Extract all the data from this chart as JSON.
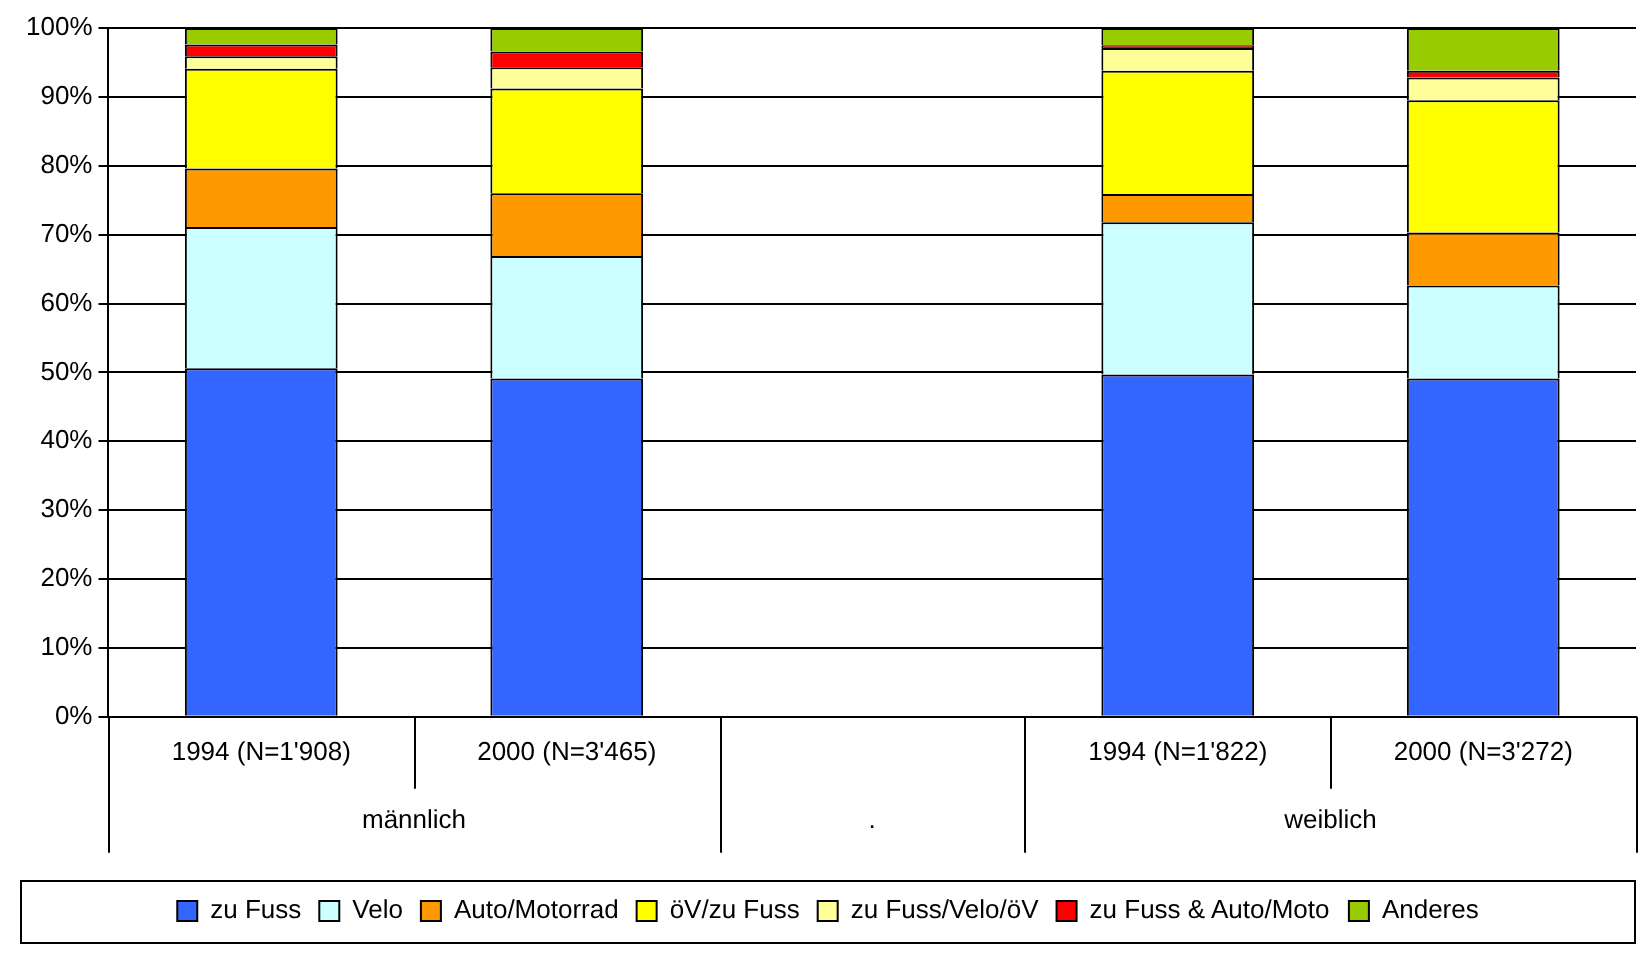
{
  "chart_data": {
    "type": "bar",
    "stacked": true,
    "categories": [
      "1994 (N=1'908)",
      "2000 (N=3'465)",
      null,
      "1994 (N=1'822)",
      "2000 (N=3'272)"
    ],
    "annotations": [
      "männlich",
      ".",
      "weiblich"
    ],
    "series": [
      {
        "name": "zu Fuss",
        "color": "#3366ff",
        "values": [
          50.6,
          49.1,
          null,
          49.7,
          49.1
        ]
      },
      {
        "name": "Velo",
        "color": "#ccffff",
        "values": [
          20.5,
          17.8,
          null,
          22.1,
          13.5
        ]
      },
      {
        "name": "Auto/Motorrad",
        "color": "#ff9900",
        "values": [
          8.5,
          9.1,
          null,
          4.1,
          7.7
        ]
      },
      {
        "name": "öV/zu Fuss",
        "color": "#ffff00",
        "values": [
          14.5,
          15.2,
          null,
          17.9,
          19.2
        ]
      },
      {
        "name": "zu Fuss/Velo/öV",
        "color": "#ffff99",
        "values": [
          1.8,
          3.1,
          null,
          3.3,
          3.3
        ]
      },
      {
        "name": "zu Fuss & Auto/Moto",
        "color": "#ff0000",
        "values": [
          1.7,
          2.3,
          null,
          0.4,
          1.0
        ]
      },
      {
        "name": "Anderes",
        "color": "#99cc00",
        "values": [
          2.4,
          3.4,
          null,
          2.5,
          6.2
        ]
      }
    ],
    "ylim": [
      0,
      100
    ],
    "yticks": [
      {
        "value": 0,
        "label": "0%"
      },
      {
        "value": 10,
        "label": "10%"
      },
      {
        "value": 20,
        "label": "20%"
      },
      {
        "value": 30,
        "label": "30%"
      },
      {
        "value": 40,
        "label": "40%"
      },
      {
        "value": 50,
        "label": "50%"
      },
      {
        "value": 60,
        "label": "60%"
      },
      {
        "value": 70,
        "label": "70%"
      },
      {
        "value": 80,
        "label": "80%"
      },
      {
        "value": 90,
        "label": "90%"
      },
      {
        "value": 100,
        "label": "100%"
      }
    ],
    "grid": "y",
    "legend": "bottom"
  }
}
